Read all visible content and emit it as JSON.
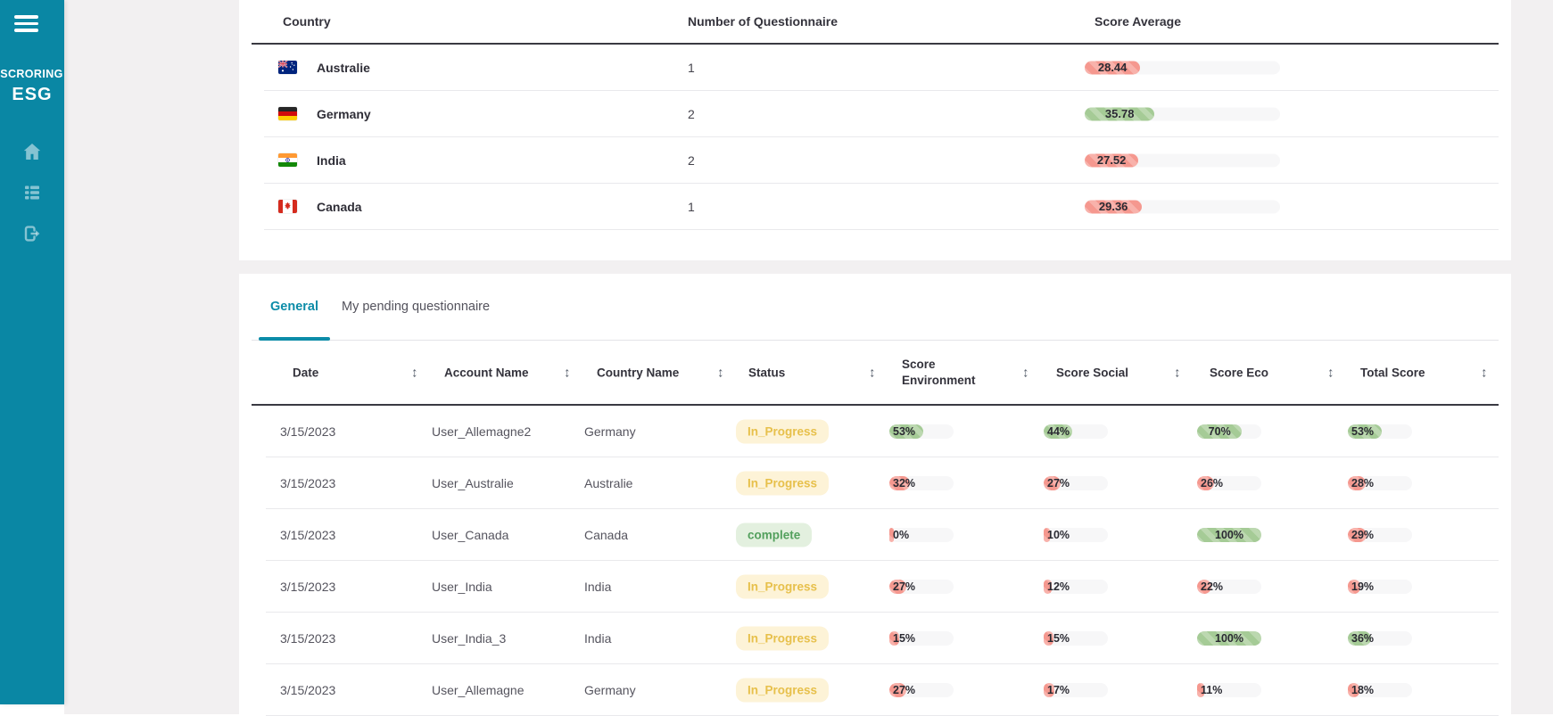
{
  "colors": {
    "sidebar": "#0A87A4",
    "accent": "#0C8CA8",
    "page_bg": "#F2F0F1",
    "fill_red": "#F5988F",
    "fill_green": "#A5CB96",
    "track": "#F7F7F8",
    "status_in_progress_bg": "#FDF3D7",
    "status_in_progress_fg": "#E7C04B",
    "status_complete_bg": "#E3F0DF",
    "status_complete_fg": "#53A05D"
  },
  "sidebar": {
    "brand_line1": "SCRORING",
    "brand_line2": "ESG",
    "nav": [
      {
        "name": "menu-icon"
      },
      {
        "name": "home-icon"
      },
      {
        "name": "list-icon"
      },
      {
        "name": "logout-icon"
      }
    ]
  },
  "summary_table": {
    "columns": [
      "Country",
      "Number of Questionnaire",
      "Score Average"
    ],
    "rows": [
      {
        "country": "Australie",
        "flag": "australia",
        "count": "1",
        "score_label": "28.44",
        "score_value": 28.44,
        "color": "red"
      },
      {
        "country": "Germany",
        "flag": "germany",
        "count": "2",
        "score_label": "35.78",
        "score_value": 35.78,
        "color": "green"
      },
      {
        "country": "India",
        "flag": "india",
        "count": "2",
        "score_label": "27.52",
        "score_value": 27.52,
        "color": "red"
      },
      {
        "country": "Canada",
        "flag": "canada",
        "count": "1",
        "score_label": "29.36",
        "score_value": 29.36,
        "color": "red"
      }
    ]
  },
  "tabs": [
    {
      "label": "General",
      "active": true
    },
    {
      "label": "My pending questionnaire",
      "active": false
    }
  ],
  "questionnaire_table": {
    "columns": [
      "Date",
      "Account Name",
      "Country Name",
      "Status",
      "Score Environment",
      "Score Social",
      "Score Eco",
      "Total Score"
    ],
    "rows": [
      {
        "date": "3/15/2023",
        "account": "User_Allemagne2",
        "country": "Germany",
        "status": "In_Progress",
        "status_type": "in_progress",
        "scores": [
          {
            "label": "53%",
            "value": 53,
            "color": "green"
          },
          {
            "label": "44%",
            "value": 44,
            "color": "green"
          },
          {
            "label": "70%",
            "value": 70,
            "color": "green"
          },
          {
            "label": "53%",
            "value": 53,
            "color": "green"
          }
        ]
      },
      {
        "date": "3/15/2023",
        "account": "User_Australie",
        "country": "Australie",
        "status": "In_Progress",
        "status_type": "in_progress",
        "scores": [
          {
            "label": "32%",
            "value": 32,
            "color": "red"
          },
          {
            "label": "27%",
            "value": 27,
            "color": "red"
          },
          {
            "label": "26%",
            "value": 26,
            "color": "red"
          },
          {
            "label": "28%",
            "value": 28,
            "color": "red"
          }
        ]
      },
      {
        "date": "3/15/2023",
        "account": "User_Canada",
        "country": "Canada",
        "status": "complete",
        "status_type": "complete",
        "scores": [
          {
            "label": "0%",
            "value": 0,
            "color": "red"
          },
          {
            "label": "10%",
            "value": 10,
            "color": "red"
          },
          {
            "label": "100%",
            "value": 100,
            "color": "green"
          },
          {
            "label": "29%",
            "value": 29,
            "color": "red"
          }
        ]
      },
      {
        "date": "3/15/2023",
        "account": "User_India",
        "country": "India",
        "status": "In_Progress",
        "status_type": "in_progress",
        "scores": [
          {
            "label": "27%",
            "value": 27,
            "color": "red"
          },
          {
            "label": "12%",
            "value": 12,
            "color": "red"
          },
          {
            "label": "22%",
            "value": 22,
            "color": "red"
          },
          {
            "label": "19%",
            "value": 19,
            "color": "red"
          }
        ]
      },
      {
        "date": "3/15/2023",
        "account": "User_India_3",
        "country": "India",
        "status": "In_Progress",
        "status_type": "in_progress",
        "scores": [
          {
            "label": "15%",
            "value": 15,
            "color": "red"
          },
          {
            "label": "15%",
            "value": 15,
            "color": "red"
          },
          {
            "label": "100%",
            "value": 100,
            "color": "green"
          },
          {
            "label": "36%",
            "value": 36,
            "color": "green"
          }
        ]
      },
      {
        "date": "3/15/2023",
        "account": "User_Allemagne",
        "country": "Germany",
        "status": "In_Progress",
        "status_type": "in_progress",
        "scores": [
          {
            "label": "27%",
            "value": 27,
            "color": "red"
          },
          {
            "label": "17%",
            "value": 17,
            "color": "red"
          },
          {
            "label": "11%",
            "value": 11,
            "color": "red"
          },
          {
            "label": "18%",
            "value": 18,
            "color": "red"
          }
        ]
      }
    ]
  }
}
